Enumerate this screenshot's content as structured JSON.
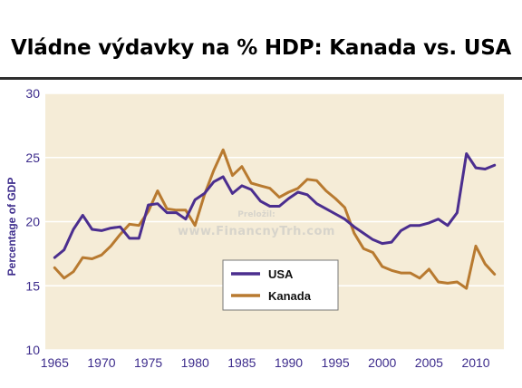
{
  "title": "Vládne výdavky na % HDP: Kanada vs. USA",
  "watermark": {
    "line1": "Preložil:",
    "line2": "www.FinancnyTrh.com"
  },
  "colors": {
    "usa": "#4b2e8f",
    "canada": "#b87a30",
    "plot_bg": "#f5ecd7",
    "grid": "#ffffff"
  },
  "chart_data": {
    "type": "line",
    "title": "",
    "xlabel": "",
    "ylabel": "Percentage of GDP",
    "xlim": [
      1964,
      2013
    ],
    "ylim": [
      10,
      30
    ],
    "xticks": [
      1965,
      1970,
      1975,
      1980,
      1985,
      1990,
      1995,
      2000,
      2005,
      2010
    ],
    "yticks": [
      10,
      15,
      20,
      25,
      30
    ],
    "grid": true,
    "legend": "center-left",
    "x": [
      1965,
      1966,
      1967,
      1968,
      1969,
      1970,
      1971,
      1972,
      1973,
      1974,
      1975,
      1976,
      1977,
      1978,
      1979,
      1980,
      1981,
      1982,
      1983,
      1984,
      1985,
      1986,
      1987,
      1988,
      1989,
      1990,
      1991,
      1992,
      1993,
      1994,
      1995,
      1996,
      1997,
      1998,
      1999,
      2000,
      2001,
      2002,
      2003,
      2004,
      2005,
      2006,
      2007,
      2008,
      2009,
      2010,
      2011,
      2012
    ],
    "series": [
      {
        "name": "USA",
        "values": [
          17.2,
          17.8,
          19.4,
          20.5,
          19.4,
          19.3,
          19.5,
          19.6,
          18.7,
          18.7,
          21.3,
          21.4,
          20.7,
          20.7,
          20.2,
          21.7,
          22.2,
          23.1,
          23.5,
          22.2,
          22.8,
          22.5,
          21.6,
          21.2,
          21.2,
          21.8,
          22.3,
          22.1,
          21.4,
          21.0,
          20.6,
          20.2,
          19.6,
          19.1,
          18.6,
          18.3,
          18.4,
          19.3,
          19.7,
          19.7,
          19.9,
          20.2,
          19.7,
          20.7,
          25.3,
          24.2,
          24.1,
          24.4
        ]
      },
      {
        "name": "Kanada",
        "values": [
          16.4,
          15.6,
          16.1,
          17.2,
          17.1,
          17.4,
          18.1,
          19.0,
          19.8,
          19.7,
          20.8,
          22.4,
          21.0,
          20.9,
          20.9,
          19.7,
          22.1,
          24.0,
          25.6,
          23.6,
          24.3,
          23.0,
          22.8,
          22.6,
          21.9,
          22.3,
          22.6,
          23.3,
          23.2,
          22.4,
          21.8,
          21.1,
          19.1,
          17.9,
          17.6,
          16.5,
          16.2,
          16.0,
          16.0,
          15.6,
          16.3,
          15.3,
          15.2,
          15.3,
          14.8,
          18.1,
          16.7,
          15.9
        ]
      }
    ]
  }
}
